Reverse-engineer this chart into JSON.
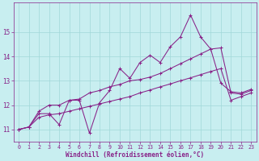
{
  "xlabel": "Windchill (Refroidissement éolien,°C)",
  "background_color": "#c8eef0",
  "grid_color": "#a0d8d8",
  "line_color": "#882288",
  "xlim": [
    -0.5,
    23.5
  ],
  "ylim": [
    10.5,
    16.2
  ],
  "yticks": [
    11,
    12,
    13,
    14,
    15
  ],
  "xticks": [
    0,
    1,
    2,
    3,
    4,
    5,
    6,
    7,
    8,
    9,
    10,
    11,
    12,
    13,
    14,
    15,
    16,
    17,
    18,
    19,
    20,
    21,
    22,
    23
  ],
  "series1_x": [
    0,
    1,
    2,
    3,
    4,
    5,
    6,
    7,
    8,
    9,
    10,
    11,
    12,
    13,
    14,
    15,
    16,
    17,
    18,
    19,
    20,
    21,
    22,
    23
  ],
  "series1_y": [
    11.0,
    11.1,
    11.65,
    11.65,
    11.2,
    12.2,
    12.2,
    10.85,
    12.1,
    12.6,
    13.5,
    13.1,
    13.75,
    14.05,
    13.75,
    14.4,
    14.8,
    15.7,
    14.8,
    14.3,
    12.9,
    12.55,
    12.5,
    12.65
  ],
  "series2_x": [
    0,
    1,
    2,
    3,
    4,
    5,
    6,
    7,
    8,
    9,
    10,
    11,
    12,
    13,
    14,
    15,
    16,
    17,
    18,
    19,
    20,
    21,
    22,
    23
  ],
  "series2_y": [
    11.0,
    11.1,
    11.75,
    12.0,
    12.0,
    12.2,
    12.25,
    12.5,
    12.6,
    12.75,
    12.85,
    13.0,
    13.05,
    13.15,
    13.3,
    13.5,
    13.7,
    13.9,
    14.1,
    14.3,
    14.35,
    12.5,
    12.45,
    12.6
  ],
  "series3_x": [
    0,
    1,
    2,
    3,
    4,
    5,
    6,
    7,
    8,
    9,
    10,
    11,
    12,
    13,
    14,
    15,
    16,
    17,
    18,
    19,
    20,
    21,
    22,
    23
  ],
  "series3_y": [
    11.0,
    11.1,
    11.5,
    11.6,
    11.65,
    11.75,
    11.85,
    11.95,
    12.05,
    12.15,
    12.25,
    12.35,
    12.5,
    12.62,
    12.75,
    12.87,
    13.0,
    13.12,
    13.25,
    13.38,
    13.5,
    12.2,
    12.35,
    12.5
  ]
}
